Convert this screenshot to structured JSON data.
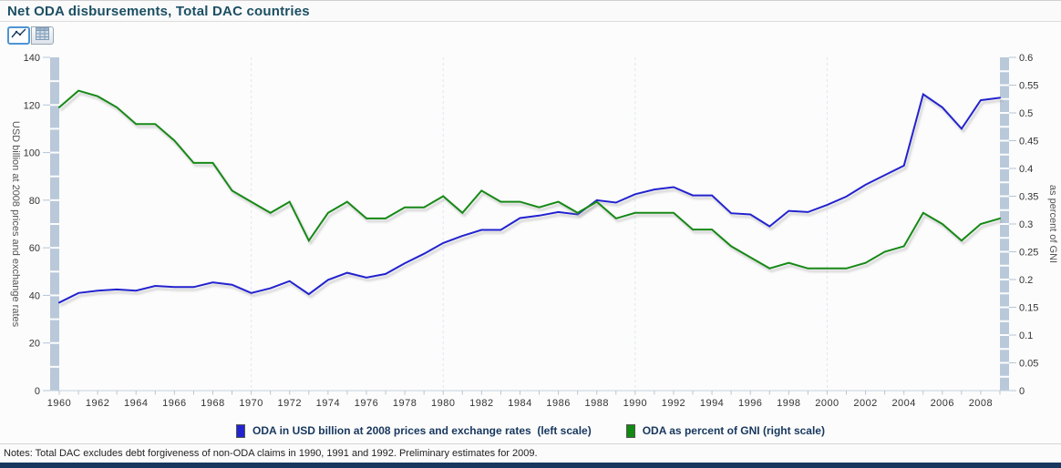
{
  "header": {
    "title": "Net ODA disbursements, Total DAC countries"
  },
  "toolbar": {
    "buttons": [
      {
        "icon": "line-chart-icon",
        "selected": true
      },
      {
        "icon": "table-icon",
        "selected": false
      }
    ]
  },
  "chart_data": {
    "type": "line",
    "title": "Net ODA disbursements, Total DAC countries",
    "x": [
      1960,
      1961,
      1962,
      1963,
      1964,
      1965,
      1966,
      1967,
      1968,
      1969,
      1970,
      1971,
      1972,
      1973,
      1974,
      1975,
      1976,
      1977,
      1978,
      1979,
      1980,
      1981,
      1982,
      1983,
      1984,
      1985,
      1986,
      1987,
      1988,
      1989,
      1990,
      1991,
      1992,
      1993,
      1994,
      1995,
      1996,
      1997,
      1998,
      1999,
      2000,
      2001,
      2002,
      2003,
      2004,
      2005,
      2006,
      2007,
      2008,
      2009
    ],
    "x_ticks": [
      1960,
      1962,
      1964,
      1966,
      1968,
      1970,
      1972,
      1974,
      1976,
      1978,
      1980,
      1982,
      1984,
      1986,
      1988,
      1990,
      1992,
      1994,
      1996,
      1998,
      2000,
      2002,
      2004,
      2006,
      2008
    ],
    "gridline_years": [
      1970,
      1980,
      1990,
      2000
    ],
    "left_axis": {
      "label": "USD billion at 2008 prices and exchange rates",
      "min": 0,
      "max": 140,
      "tick_step": 20
    },
    "right_axis": {
      "label": "as percent of GNI",
      "min": 0,
      "max": 0.6,
      "tick_step": 0.05
    },
    "series": [
      {
        "name": "ODA in USD billion at 2008 prices and exchange rates  (left scale)",
        "axis": "left",
        "color": "#2424cf",
        "values": [
          37,
          41,
          42,
          42.5,
          42,
          44,
          43.5,
          43.5,
          45.5,
          44.5,
          41,
          43,
          46,
          40.5,
          46.5,
          49.5,
          47.5,
          49,
          53.5,
          57.5,
          62,
          65,
          67.5,
          67.5,
          72.5,
          73.5,
          75,
          74,
          80,
          79,
          82.5,
          84.5,
          85.5,
          82,
          82,
          74.5,
          74,
          69,
          75.5,
          75,
          78,
          81.5,
          86.5,
          90.5,
          94.5,
          124.5,
          119,
          110,
          122,
          123
        ]
      },
      {
        "name": "ODA as percent of GNI (right scale)",
        "axis": "right",
        "color": "#128912",
        "values": [
          0.51,
          0.54,
          0.53,
          0.51,
          0.48,
          0.48,
          0.45,
          0.41,
          0.41,
          0.36,
          0.34,
          0.32,
          0.34,
          0.27,
          0.32,
          0.34,
          0.31,
          0.31,
          0.33,
          0.33,
          0.35,
          0.32,
          0.36,
          0.34,
          0.34,
          0.33,
          0.34,
          0.32,
          0.34,
          0.31,
          0.32,
          0.32,
          0.32,
          0.29,
          0.29,
          0.26,
          0.24,
          0.22,
          0.23,
          0.22,
          0.22,
          0.22,
          0.23,
          0.25,
          0.26,
          0.32,
          0.3,
          0.27,
          0.3,
          0.31
        ]
      }
    ],
    "legend_position": "bottom",
    "grid": "vertical-dashed-decades",
    "band_color": "#b9c9da",
    "tick_color": "#b4c6d8",
    "gridline_color": "#dce8f2",
    "baseline_color": "#c6d2de"
  },
  "notes": {
    "text": "Notes: Total DAC excludes debt forgiveness of non-ODA claims in 1990, 1991 and 1992. Preliminary estimates for 2009."
  }
}
